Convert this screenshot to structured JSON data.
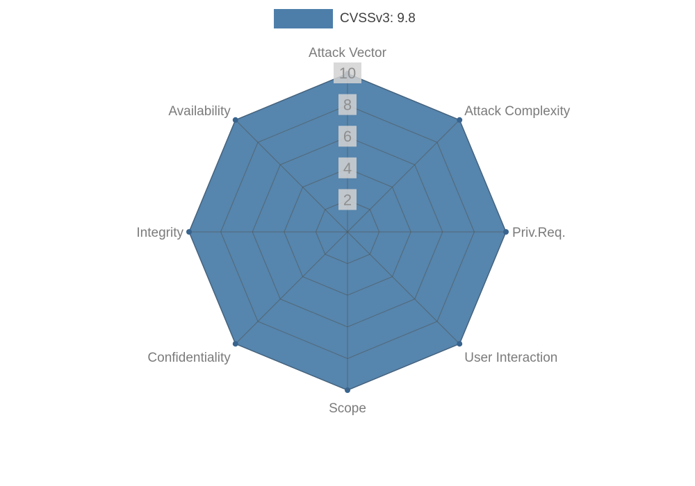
{
  "chart_data": {
    "type": "radar",
    "title": "",
    "legend_position": "top",
    "grid": true,
    "categories": [
      "Attack Vector",
      "Attack Complexity",
      "Priv.Req.",
      "User Interaction",
      "Scope",
      "Confidentiality",
      "Integrity",
      "Availability"
    ],
    "series": [
      {
        "name": "CVSSv3: 9.8",
        "values": [
          10,
          10,
          10,
          10,
          10,
          10,
          10,
          10
        ]
      }
    ],
    "ticks": [
      2,
      4,
      6,
      8,
      10
    ],
    "ylim": [
      0,
      10
    ],
    "colors": {
      "fill": "#4d7ea9",
      "stroke": "#3f6f9e",
      "dot": "#38648e",
      "grid": "#50504a",
      "tick_text": "#8e8e8e",
      "tick_bg": "#d2d2d2",
      "label": "#7b7b7b",
      "legend_text": "#3f3f3f"
    }
  }
}
